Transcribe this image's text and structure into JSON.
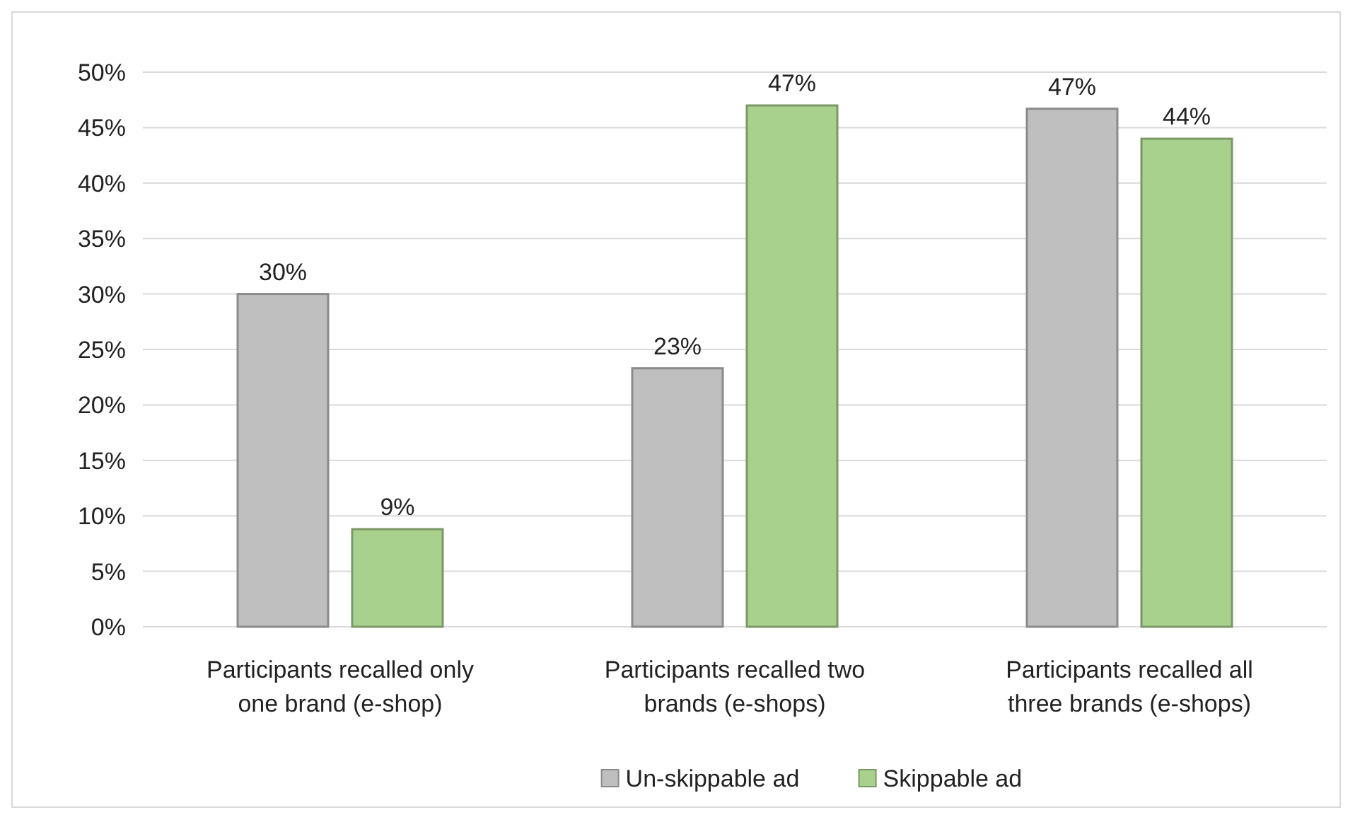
{
  "chart_data": {
    "type": "bar",
    "categories": [
      "Participants recalled only one brand (e-shop)",
      "Participants recalled two brands (e-shops)",
      "Participants recalled all three brands (e-shops)"
    ],
    "series": [
      {
        "name": "Un-skippable ad",
        "color": "#bfbfbf",
        "values": [
          30,
          23.3,
          46.7
        ],
        "value_labels": [
          "30%",
          "23%",
          "47%"
        ]
      },
      {
        "name": "Skippable ad",
        "color": "#a9d18e",
        "values": [
          8.8,
          47,
          44
        ],
        "value_labels": [
          "9%",
          "47%",
          "44%"
        ]
      }
    ],
    "ylim": [
      0,
      50
    ],
    "yticks": [
      {
        "value": 0,
        "label": "0%"
      },
      {
        "value": 5,
        "label": "5%"
      },
      {
        "value": 10,
        "label": "10%"
      },
      {
        "value": 15,
        "label": "15%"
      },
      {
        "value": 20,
        "label": "20%"
      },
      {
        "value": 25,
        "label": "25%"
      },
      {
        "value": 30,
        "label": "30%"
      },
      {
        "value": 35,
        "label": "35%"
      },
      {
        "value": 40,
        "label": "40%"
      },
      {
        "value": 45,
        "label": "45%"
      },
      {
        "value": 50,
        "label": "50%"
      }
    ],
    "grid": "y",
    "legend": "bottom"
  }
}
